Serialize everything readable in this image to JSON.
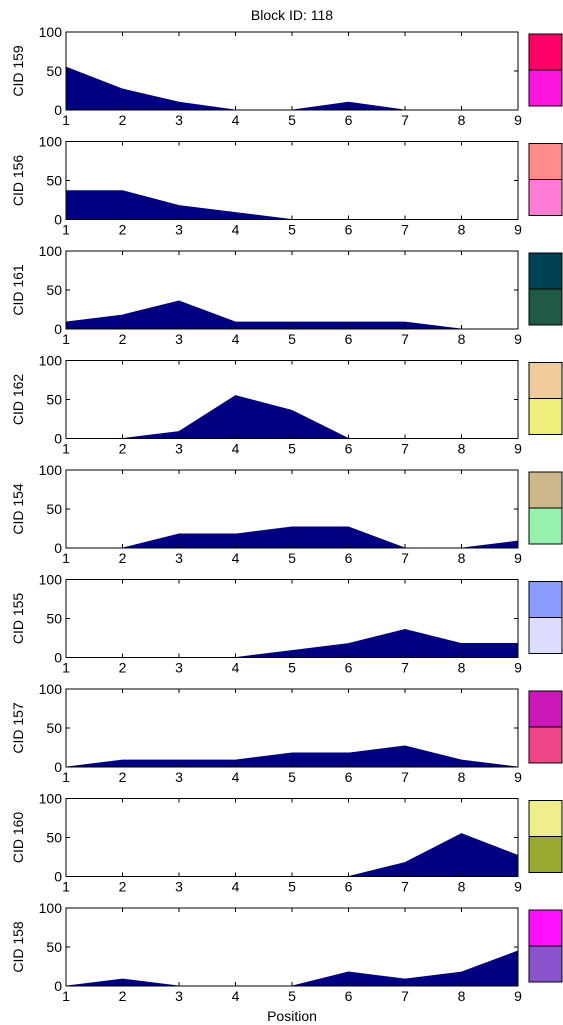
{
  "title": "Block ID: 118",
  "xlabel": "Position",
  "colors": {
    "area_fill": "#000080",
    "axis": "#000000"
  },
  "chart_data": {
    "type": "area",
    "title": "Block ID: 118",
    "xlabel": "Position",
    "x": [
      1,
      2,
      3,
      4,
      5,
      6,
      7,
      8,
      9
    ],
    "xlim": [
      1,
      9
    ],
    "ylim": [
      0,
      100
    ],
    "yticks": [
      0,
      50,
      100
    ],
    "xticks": [
      "1",
      "2",
      "3",
      "4",
      "5",
      "6",
      "7",
      "8",
      "9"
    ],
    "grid": false,
    "panels": [
      {
        "ylabel": "CID 159",
        "values": [
          55,
          27,
          10,
          0,
          0,
          10,
          0,
          0,
          0
        ],
        "swatch": [
          "#ff0066",
          "#ff16de"
        ]
      },
      {
        "ylabel": "CID 156",
        "values": [
          37,
          37,
          18,
          9,
          0,
          0,
          0,
          0,
          0
        ],
        "swatch": [
          "#ff8c88",
          "#ff7cd4"
        ]
      },
      {
        "ylabel": "CID 161",
        "values": [
          9,
          18,
          36,
          9,
          9,
          9,
          9,
          0,
          0
        ],
        "swatch": [
          "#004255",
          "#1f5a47"
        ]
      },
      {
        "ylabel": "CID 162",
        "values": [
          0,
          0,
          9,
          55,
          36,
          0,
          0,
          0,
          0
        ],
        "swatch": [
          "#f0cc9a",
          "#efef7b"
        ]
      },
      {
        "ylabel": "CID 154",
        "values": [
          0,
          0,
          18,
          18,
          27,
          27,
          0,
          0,
          9
        ],
        "swatch": [
          "#ccb88b",
          "#96f1ad"
        ]
      },
      {
        "ylabel": "CID 155",
        "values": [
          0,
          0,
          0,
          0,
          9,
          18,
          36,
          18,
          18
        ],
        "swatch": [
          "#8b9cfe",
          "#dcdcfe"
        ]
      },
      {
        "ylabel": "CID 157",
        "values": [
          0,
          9,
          9,
          9,
          18,
          18,
          27,
          9,
          0
        ],
        "swatch": [
          "#cc18b8",
          "#ee4788"
        ]
      },
      {
        "ylabel": "CID 160",
        "values": [
          0,
          0,
          0,
          0,
          0,
          0,
          18,
          55,
          27
        ],
        "swatch": [
          "#eeee8b",
          "#9aaa30"
        ]
      },
      {
        "ylabel": "CID 158",
        "values": [
          0,
          9,
          0,
          0,
          0,
          18,
          9,
          18,
          45
        ],
        "swatch": [
          "#ff10ff",
          "#8a55cc"
        ]
      }
    ]
  }
}
